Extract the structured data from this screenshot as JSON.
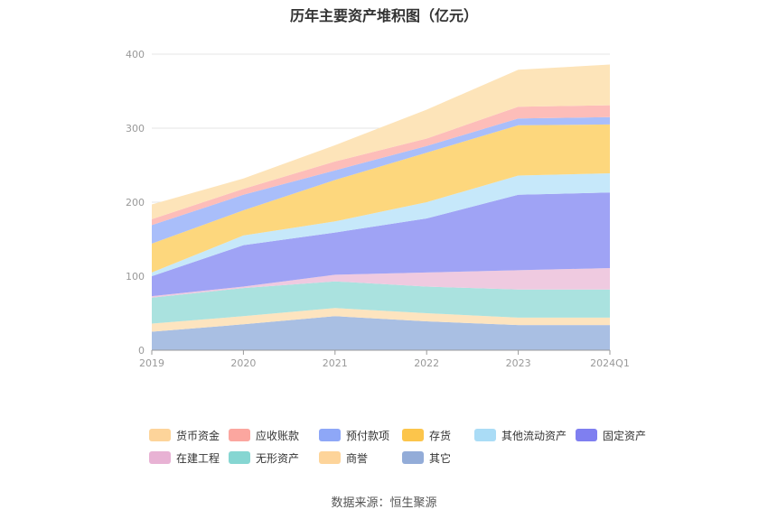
{
  "title": "历年主要资产堆积图（亿元）",
  "source": "数据来源：恒生聚源",
  "chart_data": {
    "type": "area",
    "stacked": true,
    "title": "历年主要资产堆积图（亿元）",
    "x": [
      "2019",
      "2020",
      "2021",
      "2022",
      "2023",
      "2024Q1"
    ],
    "ylim": [
      0,
      400
    ],
    "yticks": [
      0,
      100,
      200,
      300,
      400
    ],
    "grid": true,
    "legend_position": "bottom",
    "series": [
      {
        "name": "其它",
        "color": "#a9bfe3",
        "legend_color": "#93acd8",
        "values": [
          25,
          35,
          46,
          39,
          34,
          34
        ]
      },
      {
        "name": "商誉",
        "color": "#fde4bf",
        "legend_color": "#fdd49a",
        "values": [
          11,
          11,
          11,
          11,
          10,
          10
        ]
      },
      {
        "name": "无形资产",
        "color": "#aae2df",
        "legend_color": "#86d6d2",
        "values": [
          35,
          38,
          36,
          36,
          38,
          38
        ]
      },
      {
        "name": "在建工程",
        "color": "#efcae0",
        "legend_color": "#e8b2d4",
        "values": [
          2,
          2,
          9,
          19,
          26,
          29
        ]
      },
      {
        "name": "固定资产",
        "color": "#9fa3f5",
        "legend_color": "#7f7ff0",
        "values": [
          27,
          56,
          57,
          73,
          102,
          102
        ]
      },
      {
        "name": "其他流动资产",
        "color": "#c6e8fa",
        "legend_color": "#aadcf6",
        "values": [
          5,
          13,
          15,
          22,
          26,
          26
        ]
      },
      {
        "name": "存货",
        "color": "#fdd77d",
        "legend_color": "#fcc54b",
        "values": [
          39,
          34,
          56,
          67,
          68,
          66
        ]
      },
      {
        "name": "预付款项",
        "color": "#a9befa",
        "legend_color": "#8ea7f7",
        "values": [
          25,
          21,
          13,
          9,
          9,
          10
        ]
      },
      {
        "name": "应收账款",
        "color": "#fdbdb9",
        "legend_color": "#fba69f",
        "values": [
          8,
          8,
          12,
          10,
          16,
          16
        ]
      },
      {
        "name": "货币资金",
        "color": "#fde4b9",
        "legend_color": "#fdd49a",
        "values": [
          20,
          14,
          22,
          39,
          50,
          55
        ]
      }
    ]
  }
}
